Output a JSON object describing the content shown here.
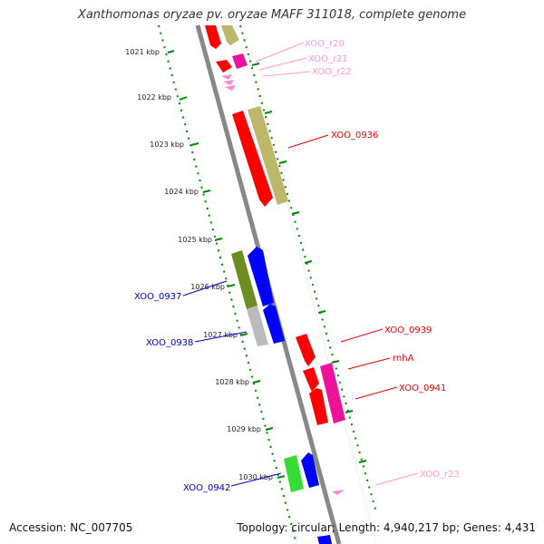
{
  "title": "Xanthomonas oryzae pv. oryzae MAFF 311018, complete genome",
  "footer": {
    "accession": "Accession: NC_007705",
    "summary": "Topology: circular; Length: 4,940,217 bp; Genes: 4,431"
  },
  "ticks": [
    "1021 kbp",
    "1022 kbp",
    "1023 kbp",
    "1024 kbp",
    "1025 kbp",
    "1026 kbp",
    "1027 kbp",
    "1028 kbp",
    "1029 kbp",
    "1030 kbp"
  ],
  "gene_labels": [
    {
      "text": "XOO_r20",
      "color": "#ff99cc"
    },
    {
      "text": "XOO_r21",
      "color": "#ff99cc"
    },
    {
      "text": "XOO_r22",
      "color": "#ff99cc"
    },
    {
      "text": "XOO_0936",
      "color": "#ee0000"
    },
    {
      "text": "XOO_0937",
      "color": "#0000cc"
    },
    {
      "text": "XOO_0938",
      "color": "#0000cc"
    },
    {
      "text": "XOO_0939",
      "color": "#ee0000"
    },
    {
      "text": "rnhA",
      "color": "#ee0000"
    },
    {
      "text": "XOO_0941",
      "color": "#ee0000"
    },
    {
      "text": "XOO_0942",
      "color": "#0000cc"
    },
    {
      "text": "XOO_r23",
      "color": "#ff99cc"
    }
  ],
  "colors": {
    "backbone": "#888888",
    "tick_green": "#008800",
    "cds_red": "#ff0000",
    "khaki": "#bdb76b",
    "magenta": "#ee1199",
    "blue": "#0000ff",
    "olive": "#6b8e23",
    "gray": "#bbbbbb",
    "green": "#33dd33",
    "pink": "#ff88cc"
  }
}
